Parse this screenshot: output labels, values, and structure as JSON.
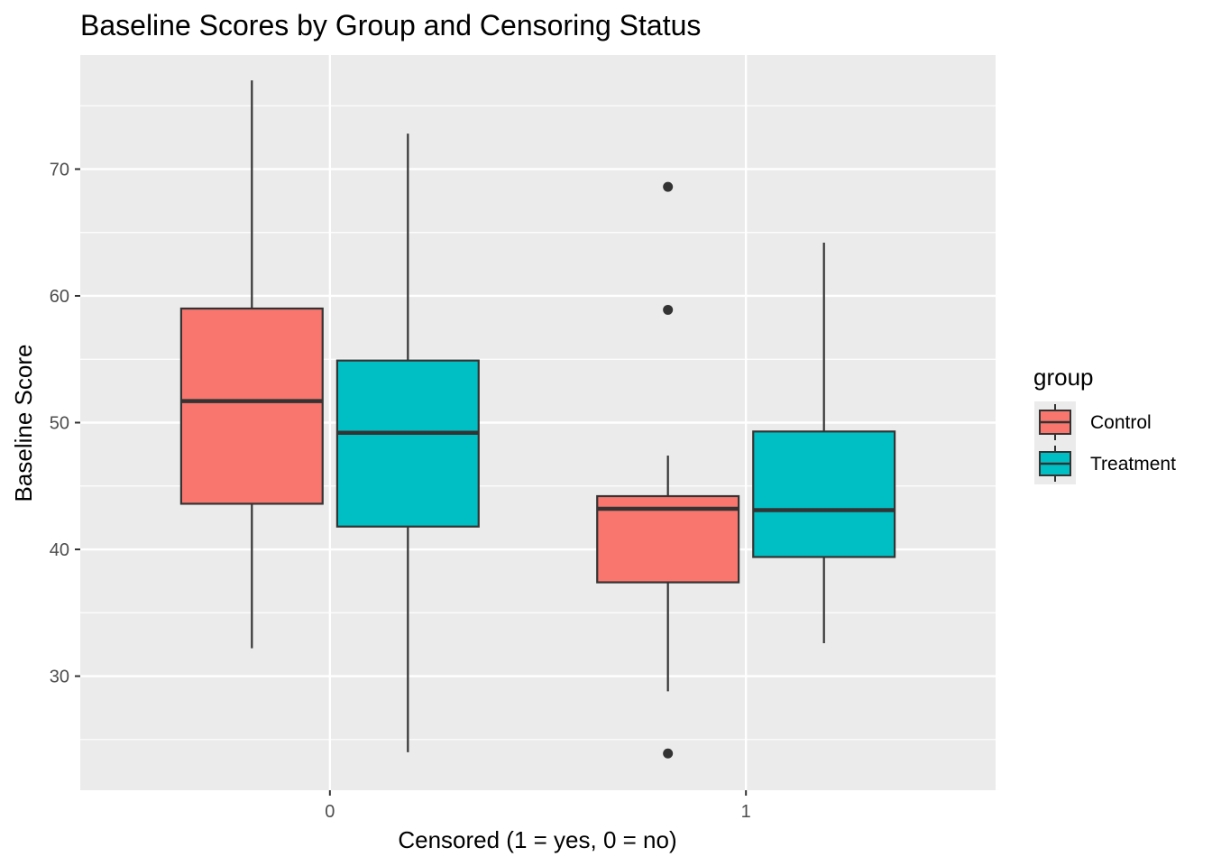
{
  "chart_data": {
    "type": "boxplot",
    "title": "Baseline Scores by Group and Censoring Status",
    "xlabel": "Censored (1 = yes, 0 = no)",
    "ylabel": "Baseline Score",
    "categories": [
      "0",
      "1"
    ],
    "ylim": [
      21,
      79
    ],
    "yticks": [
      30,
      40,
      50,
      60,
      70
    ],
    "grid": true,
    "legend": {
      "title": "group",
      "position": "right"
    },
    "series": [
      {
        "name": "Control",
        "color": "#F8766D",
        "boxes": [
          {
            "category": "0",
            "lower": 32.2,
            "q1": 43.6,
            "median": 51.7,
            "q3": 59.0,
            "upper": 77.0,
            "outliers": []
          },
          {
            "category": "1",
            "lower": 28.8,
            "q1": 37.4,
            "median": 43.2,
            "q3": 44.2,
            "upper": 47.4,
            "outliers": [
              68.6,
              58.9,
              23.9
            ]
          }
        ]
      },
      {
        "name": "Treatment",
        "color": "#00BFC4",
        "boxes": [
          {
            "category": "0",
            "lower": 24.0,
            "q1": 41.8,
            "median": 49.2,
            "q3": 54.9,
            "upper": 72.8,
            "outliers": []
          },
          {
            "category": "1",
            "lower": 32.6,
            "q1": 39.4,
            "median": 43.1,
            "q3": 49.3,
            "upper": 64.2,
            "outliers": []
          }
        ]
      }
    ]
  }
}
